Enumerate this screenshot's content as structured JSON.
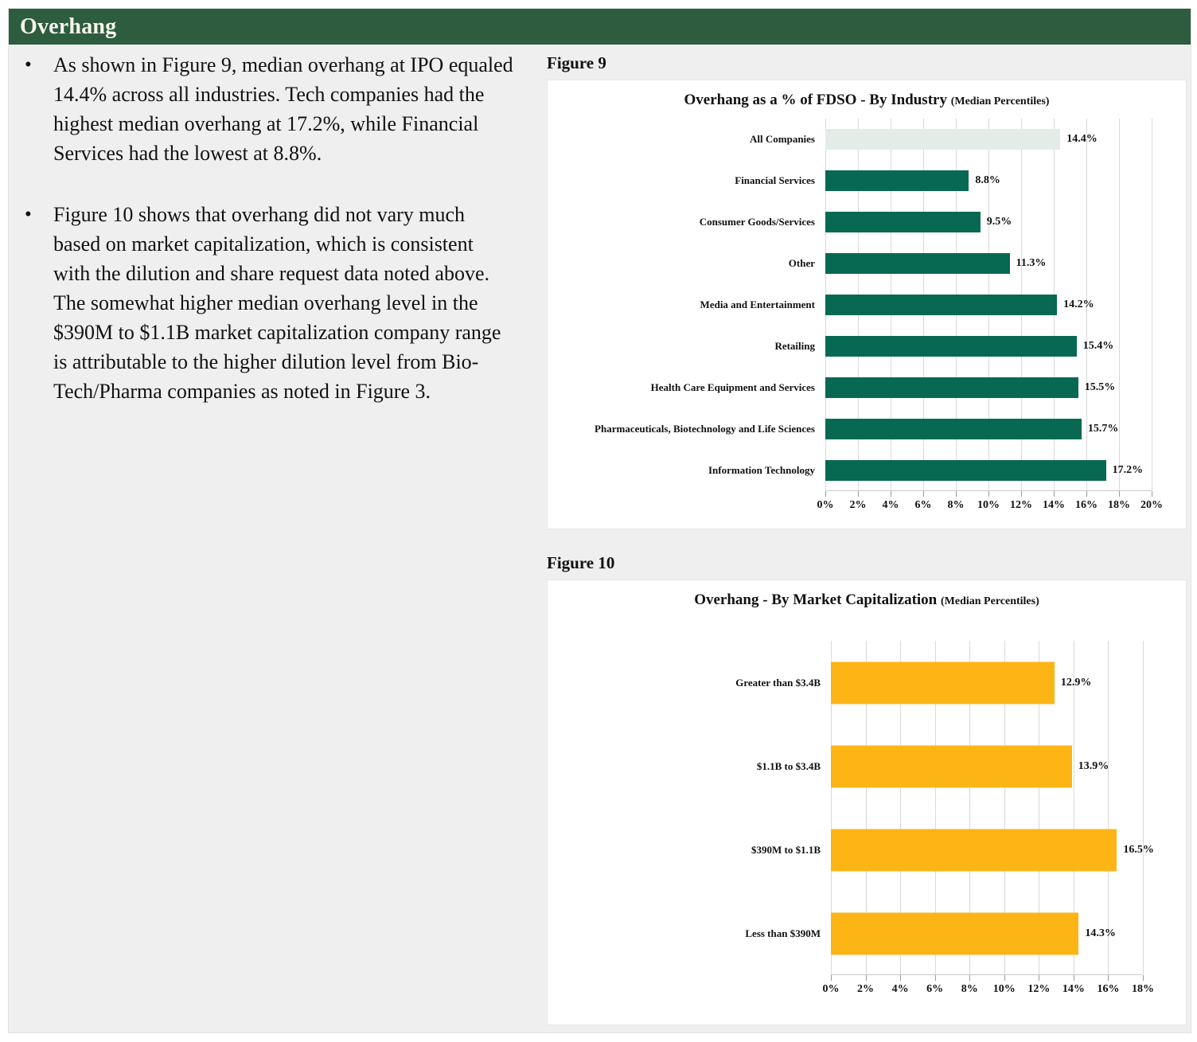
{
  "header": {
    "title": "Overhang",
    "bg_color": "#2d5c3e",
    "text_color": "#f7f6ee"
  },
  "bullet_char": "•",
  "bullets": [
    "As shown in Figure 9, median overhang at IPO equaled 14.4% across all industries. Tech companies had the highest median overhang at 17.2%, while Financial Services had the lowest at 8.8%.",
    "Figure 10 shows that overhang did not vary much based on market capitalization, which is consistent with the dilution and share request data noted above. The somewhat higher median overhang level in the $390M to $1.1B market capitalization company range is attributable to the higher dilution level from Bio-Tech/Pharma companies as noted in Figure 3."
  ],
  "figures": [
    {
      "label": "Figure 9"
    },
    {
      "label": "Figure 10"
    }
  ],
  "chart_data": [
    {
      "type": "bar",
      "orientation": "horizontal",
      "title": "Overhang as a % of FDSO - By Industry",
      "subtitle": "(Median Percentiles)",
      "categories": [
        "All Companies",
        "Financial Services",
        "Consumer Goods/Services",
        "Other",
        "Media and Entertainment",
        "Retailing",
        "Health Care Equipment and Services",
        "Pharmaceuticals, Biotechnology and Life Sciences",
        "Information Technology"
      ],
      "values": [
        14.4,
        8.8,
        9.5,
        11.3,
        14.2,
        15.4,
        15.5,
        15.7,
        17.2
      ],
      "value_labels": [
        "14.4%",
        "8.8%",
        "9.5%",
        "11.3%",
        "14.2%",
        "15.4%",
        "15.5%",
        "15.7%",
        "17.2%"
      ],
      "colors": [
        "#e3ece7",
        "#076952",
        "#076952",
        "#076952",
        "#076952",
        "#076952",
        "#076952",
        "#076952",
        "#076952"
      ],
      "xlim": [
        0,
        20
      ],
      "tick_labels": [
        "0%",
        "2%",
        "4%",
        "6%",
        "8%",
        "10%",
        "12%",
        "14%",
        "16%",
        "18%",
        "20%"
      ],
      "grid": true,
      "gridline_color": "#d9d9d9",
      "legend": "none"
    },
    {
      "type": "bar",
      "orientation": "horizontal",
      "title": "Overhang - By Market Capitalization",
      "subtitle": "(Median Percentiles)",
      "categories": [
        "Greater than $3.4B",
        "$1.1B to $3.4B",
        "$390M to $1.1B",
        "Less than $390M"
      ],
      "values": [
        12.9,
        13.9,
        16.5,
        14.3
      ],
      "value_labels": [
        "12.9%",
        "13.9%",
        "16.5%",
        "14.3%"
      ],
      "colors": [
        "#fdb515",
        "#fdb515",
        "#fdb515",
        "#fdb515"
      ],
      "xlim": [
        0,
        18
      ],
      "tick_labels": [
        "0%",
        "2%",
        "4%",
        "6%",
        "8%",
        "10%",
        "12%",
        "14%",
        "16%",
        "18%"
      ],
      "grid": true,
      "gridline_color": "#d9d9d9",
      "legend": "none"
    }
  ]
}
